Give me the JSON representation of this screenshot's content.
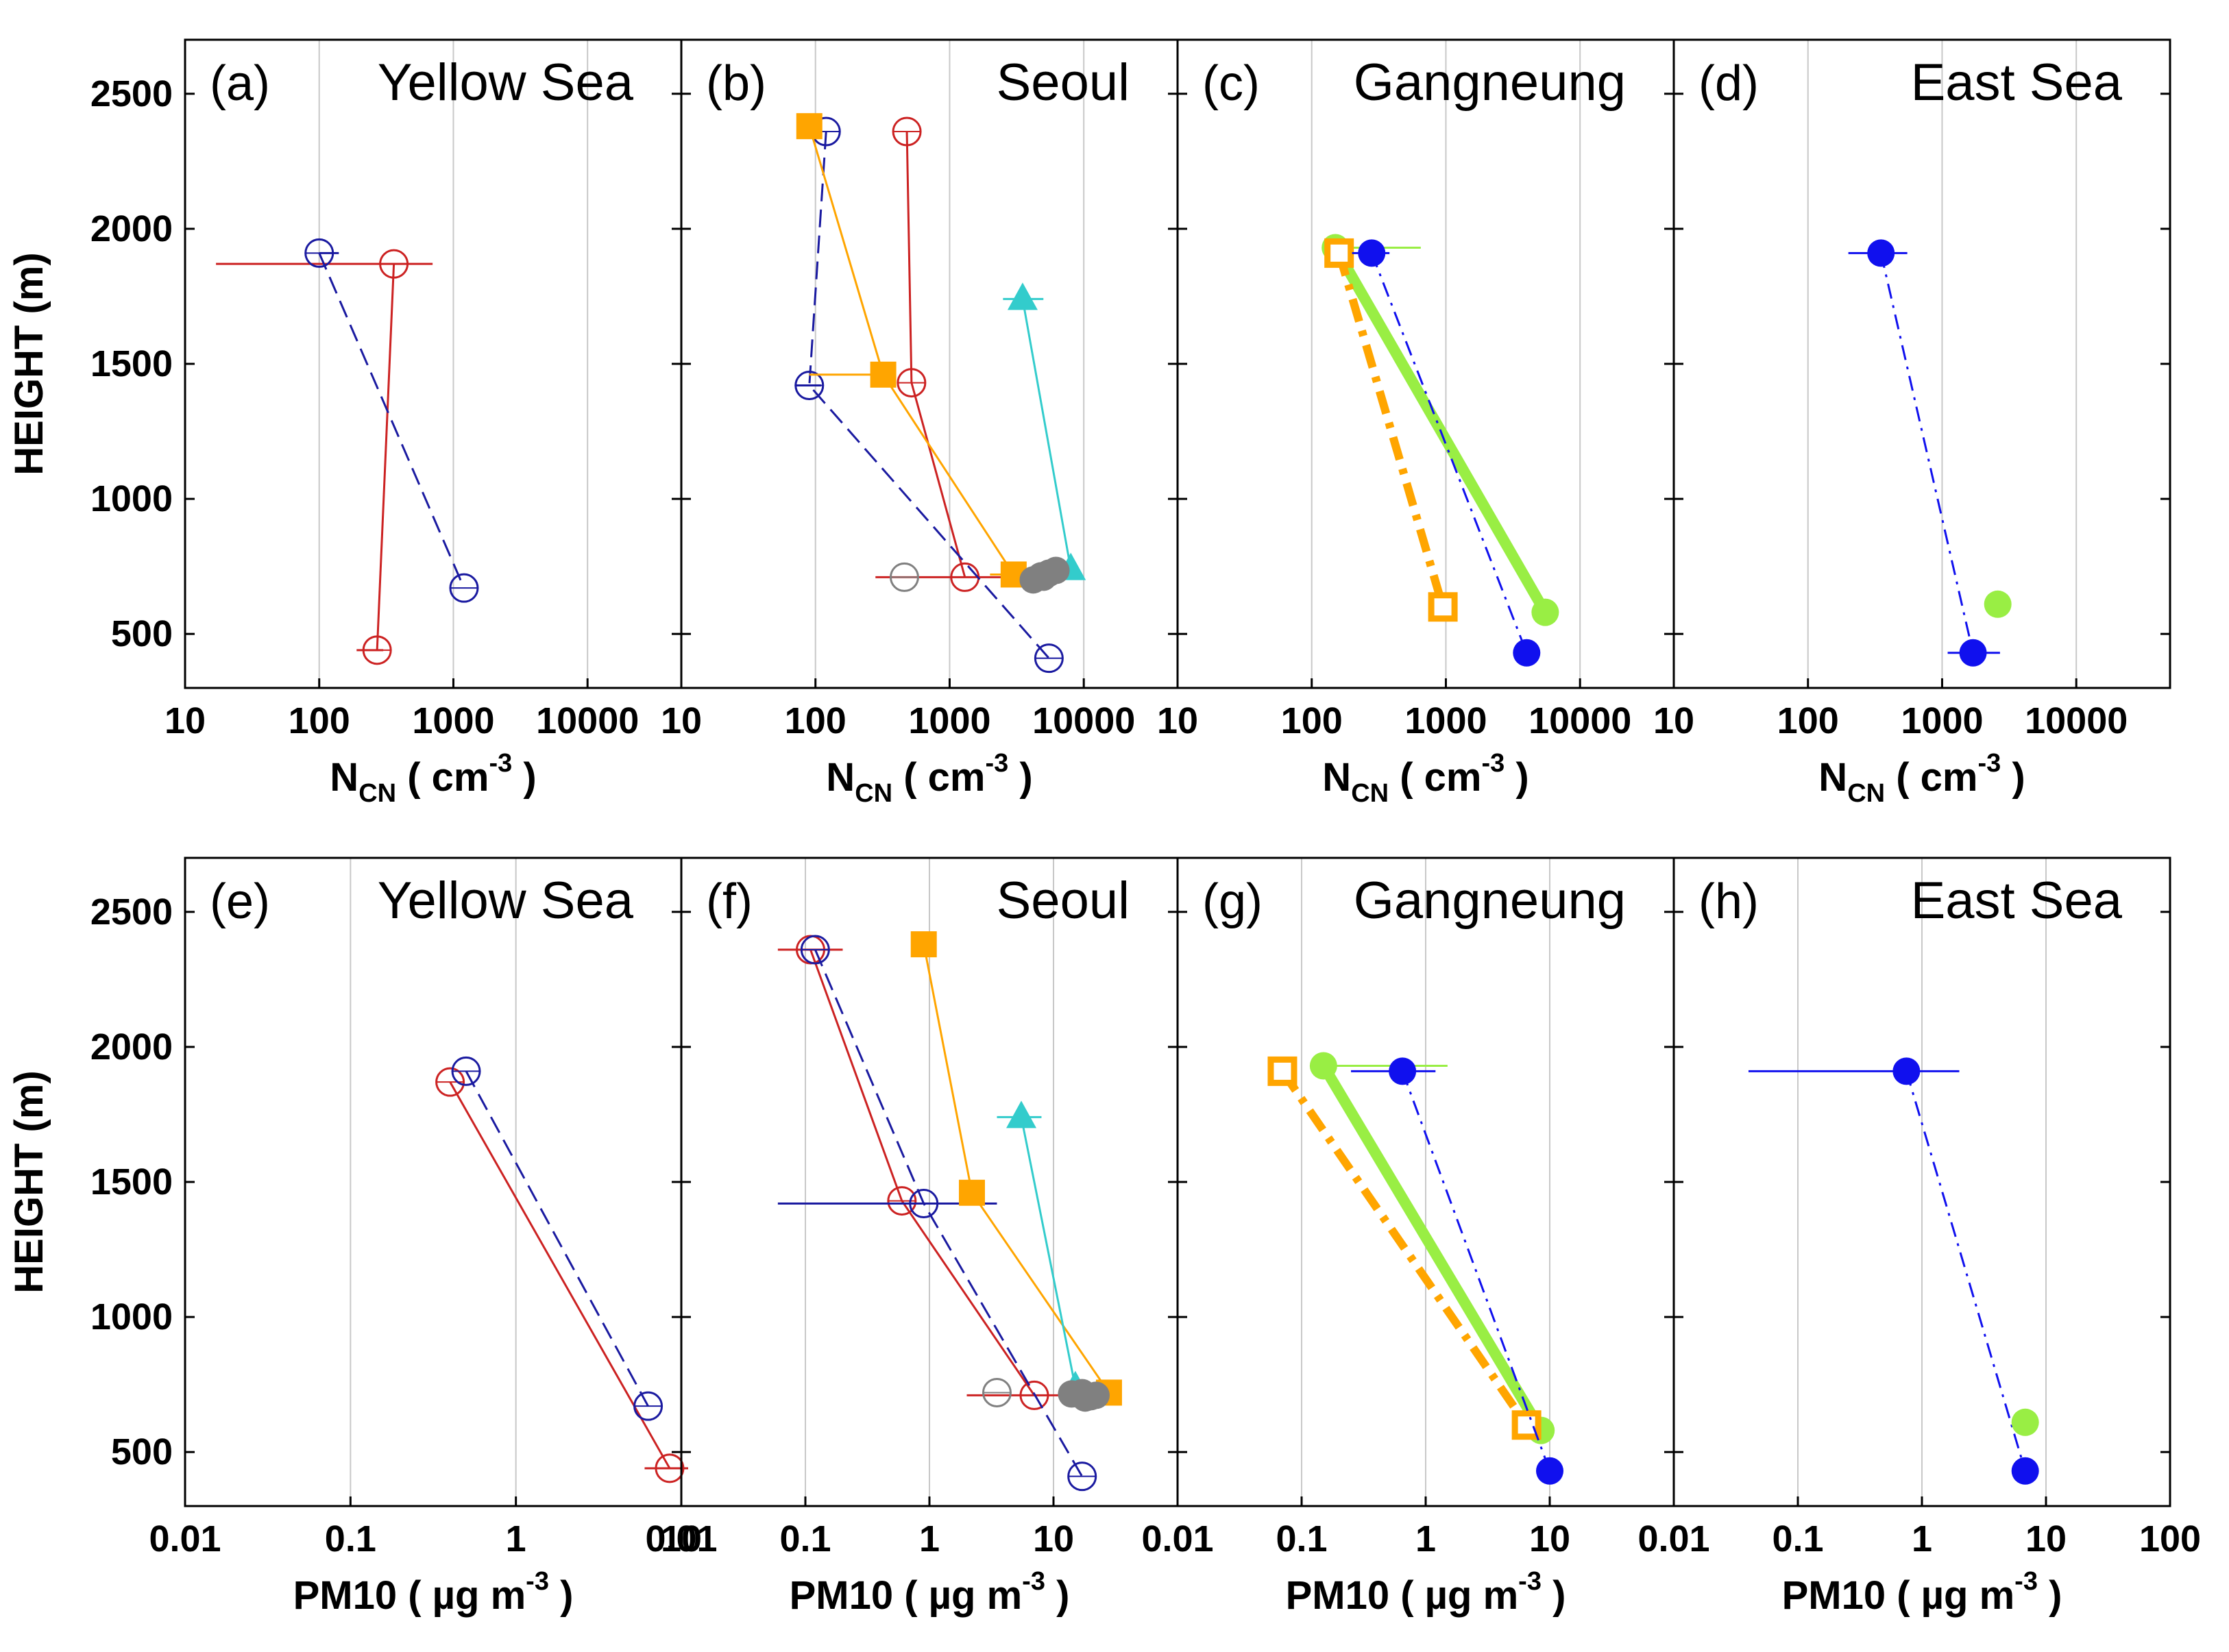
{
  "colors": {
    "red": "#cc2222",
    "navy": "#1a1aa0",
    "orange": "#ffa500",
    "cyan": "#33cccc",
    "green": "#99ee44",
    "blue": "#1010ee",
    "gray": "#808080",
    "grid": "#c8c8c8"
  },
  "chart_data": [
    {
      "type": "line",
      "panel": "(a)",
      "title": "Yellow Sea",
      "ylabel": "HEIGHT (m)",
      "xlabel": {
        "main": "N",
        "sub": "CN",
        "unit_pre": "( cm",
        "unit_sup": "-3",
        "unit_post": " )"
      },
      "xscale": "log",
      "xlim": [
        10,
        50000
      ],
      "ylim": [
        300,
        2700
      ],
      "xticks": [
        "10",
        "100",
        "1000",
        "10000"
      ],
      "yticks": [
        "500",
        "1000",
        "1500",
        "2000",
        "2500"
      ],
      "grid": "vertical",
      "series": [
        {
          "color": "red",
          "marker": "circle-open",
          "line": "solid",
          "points": [
            [
              360,
              1870
            ],
            [
              270,
              440
            ]
          ],
          "errors": [
            [
              17,
              700
            ],
            [
              190,
              300
            ]
          ]
        },
        {
          "color": "navy",
          "marker": "circle-open",
          "line": "dashed",
          "points": [
            [
              100,
              1910
            ],
            [
              1200,
              670
            ]
          ],
          "errors": [
            [
              100,
              140
            ],
            null
          ]
        }
      ]
    },
    {
      "type": "line",
      "panel": "(b)",
      "title": "Seoul",
      "xlabel": {
        "main": "N",
        "sub": "CN",
        "unit_pre": "( cm",
        "unit_sup": "-3",
        "unit_post": " )"
      },
      "xscale": "log",
      "xlim": [
        10,
        50000
      ],
      "ylim": [
        300,
        2700
      ],
      "xticks": [
        "10",
        "100",
        "1000",
        "10000"
      ],
      "grid": "vertical",
      "series": [
        {
          "color": "red",
          "marker": "circle-open",
          "line": "solid",
          "points": [
            [
              480,
              2360
            ],
            [
              520,
              1430
            ],
            [
              1300,
              710
            ]
          ],
          "errors": [
            null,
            null,
            [
              280,
              3000
            ]
          ]
        },
        {
          "color": "navy",
          "marker": "circle-open",
          "line": "dashed",
          "points": [
            [
              120,
              2360
            ],
            [
              90,
              1420
            ],
            [
              5500,
              410
            ]
          ],
          "errors": [
            null,
            [
              70,
              110
            ],
            null
          ]
        },
        {
          "color": "orange",
          "marker": "square-filled",
          "line": "solid",
          "points": [
            [
              90,
              2380
            ],
            [
              320,
              1460
            ],
            [
              3000,
              720
            ]
          ],
          "errors": [
            null,
            [
              90,
              320
            ],
            [
              2000,
              3500
            ]
          ]
        },
        {
          "color": "cyan",
          "marker": "triangle-filled",
          "line": "solid",
          "points": [
            [
              3500,
              1740
            ],
            [
              8000,
              740
            ]
          ],
          "errors": [
            [
              2500,
              5000
            ],
            null
          ]
        },
        {
          "color": "gray",
          "marker": "circle-open",
          "line": "none",
          "points": [
            [
              460,
              710
            ]
          ],
          "errors": [
            null
          ]
        },
        {
          "color": "gray",
          "marker": "circle-filled",
          "line": "none",
          "points": [
            [
              4200,
              700
            ],
            [
              4800,
              715
            ],
            [
              5500,
              725
            ],
            [
              6200,
              735
            ],
            [
              5000,
              710
            ]
          ],
          "errors": [
            null,
            null,
            null,
            null,
            null
          ]
        }
      ]
    },
    {
      "type": "line",
      "panel": "(c)",
      "title": "Gangneung",
      "xlabel": {
        "main": "N",
        "sub": "CN",
        "unit_pre": "( cm",
        "unit_sup": "-3",
        "unit_post": " )"
      },
      "xscale": "log",
      "xlim": [
        10,
        50000
      ],
      "ylim": [
        300,
        2700
      ],
      "xticks": [
        "10",
        "100",
        "1000",
        "10000"
      ],
      "grid": "vertical",
      "series": [
        {
          "color": "green",
          "marker": "circle-filled",
          "line": "thick",
          "points": [
            [
              150,
              1930
            ],
            [
              5500,
              580
            ]
          ],
          "errors": [
            [
              140,
              650
            ],
            null
          ]
        },
        {
          "color": "orange",
          "marker": "square-open",
          "line": "dashdot-thick",
          "points": [
            [
              160,
              1910
            ],
            [
              950,
              600
            ]
          ],
          "errors": [
            null,
            null
          ]
        },
        {
          "color": "blue",
          "marker": "circle-filled",
          "line": "dashdot",
          "points": [
            [
              280,
              1910
            ],
            [
              4000,
              430
            ]
          ],
          "errors": [
            [
              200,
              380
            ],
            null
          ]
        }
      ]
    },
    {
      "type": "line",
      "panel": "(d)",
      "title": "East Sea",
      "xlabel": {
        "main": "N",
        "sub": "CN",
        "unit_pre": "( cm",
        "unit_sup": "-3",
        "unit_post": " )"
      },
      "xscale": "log",
      "xlim": [
        10,
        50000
      ],
      "ylim": [
        300,
        2700
      ],
      "xticks": [
        "10",
        "100",
        "1000",
        "10000"
      ],
      "grid": "vertical",
      "series": [
        {
          "color": "blue",
          "marker": "circle-filled",
          "line": "dashdot",
          "points": [
            [
              350,
              1910
            ],
            [
              1700,
              430
            ]
          ],
          "errors": [
            [
              200,
              550
            ],
            [
              1100,
              2700
            ]
          ]
        },
        {
          "color": "green",
          "marker": "circle-filled",
          "line": "none",
          "points": [
            [
              2600,
              610
            ]
          ],
          "errors": [
            null
          ]
        }
      ]
    },
    {
      "type": "line",
      "panel": "(e)",
      "title": "Yellow Sea",
      "ylabel": "HEIGHT (m)",
      "xlabel": {
        "main": "PM10",
        "unit_pre": "( µg m",
        "unit_sup": "-3",
        "unit_post": " )"
      },
      "xscale": "log",
      "xlim": [
        0.01,
        10
      ],
      "ylim": [
        300,
        2700
      ],
      "xticks": [
        "0.01",
        "0.1",
        "1",
        "10"
      ],
      "yticks": [
        "500",
        "1000",
        "1500",
        "2000",
        "2500"
      ],
      "grid": "vertical",
      "series": [
        {
          "color": "red",
          "marker": "circle-open",
          "line": "solid",
          "points": [
            [
              0.4,
              1870
            ],
            [
              8.5,
              440
            ]
          ],
          "errors": [
            null,
            [
              6,
              11
            ]
          ]
        },
        {
          "color": "navy",
          "marker": "circle-open",
          "line": "dashed",
          "points": [
            [
              0.5,
              1910
            ],
            [
              6.3,
              670
            ]
          ],
          "errors": [
            null,
            null
          ]
        }
      ]
    },
    {
      "type": "line",
      "panel": "(f)",
      "title": "Seoul",
      "xlabel": {
        "main": "PM10",
        "unit_pre": "( µg m",
        "unit_sup": "-3",
        "unit_post": " )"
      },
      "xscale": "log",
      "xlim": [
        0.01,
        100
      ],
      "ylim": [
        300,
        2700
      ],
      "xticks": [
        "0.01",
        "0.1",
        "1",
        "10"
      ],
      "grid": "vertical",
      "series": [
        {
          "color": "red",
          "marker": "circle-open",
          "line": "solid",
          "points": [
            [
              0.11,
              2360
            ],
            [
              0.6,
              1430
            ],
            [
              7,
              710
            ]
          ],
          "errors": [
            [
              0.06,
              0.2
            ],
            null,
            [
              2,
              25
            ]
          ]
        },
        {
          "color": "navy",
          "marker": "circle-open",
          "line": "dashed",
          "points": [
            [
              0.12,
              2360
            ],
            [
              0.9,
              1420
            ],
            [
              17,
              410
            ]
          ],
          "errors": [
            null,
            [
              0.06,
              3.5
            ],
            null
          ]
        },
        {
          "color": "orange",
          "marker": "square-filled",
          "line": "solid",
          "points": [
            [
              0.9,
              2380
            ],
            [
              2.2,
              1460
            ],
            [
              28,
              720
            ]
          ],
          "errors": [
            null,
            null,
            null
          ]
        },
        {
          "color": "cyan",
          "marker": "triangle-filled",
          "line": "solid",
          "points": [
            [
              5.5,
              1740
            ],
            [
              15,
              740
            ]
          ],
          "errors": [
            [
              3.5,
              8
            ],
            null
          ]
        },
        {
          "color": "gray",
          "marker": "circle-open",
          "line": "none",
          "points": [
            [
              3.5,
              720
            ]
          ],
          "errors": [
            null
          ]
        },
        {
          "color": "gray",
          "marker": "circle-filled",
          "line": "none",
          "points": [
            [
              14,
              715
            ],
            [
              17,
              720
            ],
            [
              20,
              705
            ],
            [
              22,
              710
            ],
            [
              18,
              700
            ]
          ],
          "errors": [
            null,
            null,
            null,
            null,
            null
          ]
        }
      ]
    },
    {
      "type": "line",
      "panel": "(g)",
      "title": "Gangneung",
      "xlabel": {
        "main": "PM10",
        "unit_pre": "( µg m",
        "unit_sup": "-3",
        "unit_post": " )"
      },
      "xscale": "log",
      "xlim": [
        0.01,
        100
      ],
      "ylim": [
        300,
        2700
      ],
      "xticks": [
        "0.01",
        "0.1",
        "1",
        "10"
      ],
      "grid": "vertical",
      "series": [
        {
          "color": "green",
          "marker": "circle-filled",
          "line": "thick",
          "points": [
            [
              0.15,
              1930
            ],
            [
              8.5,
              580
            ]
          ],
          "errors": [
            [
              0.15,
              1.5
            ],
            null
          ]
        },
        {
          "color": "orange",
          "marker": "square-open",
          "line": "dashdot-thick",
          "points": [
            [
              0.07,
              1910
            ],
            [
              6.5,
              600
            ]
          ],
          "errors": [
            null,
            null
          ]
        },
        {
          "color": "blue",
          "marker": "circle-filled",
          "line": "dashdot",
          "points": [
            [
              0.65,
              1910
            ],
            [
              10,
              430
            ]
          ],
          "errors": [
            [
              0.25,
              1.2
            ],
            null
          ]
        }
      ]
    },
    {
      "type": "line",
      "panel": "(h)",
      "title": "East Sea",
      "xlabel": {
        "main": "PM10",
        "unit_pre": "( µg m",
        "unit_sup": "-3",
        "unit_post": " )"
      },
      "xscale": "log",
      "xlim": [
        0.01,
        100
      ],
      "ylim": [
        300,
        2700
      ],
      "xticks": [
        "0.01",
        "0.1",
        "1",
        "10",
        "100"
      ],
      "grid": "vertical",
      "series": [
        {
          "color": "blue",
          "marker": "circle-filled",
          "line": "dashdot",
          "points": [
            [
              0.75,
              1910
            ],
            [
              6.8,
              430
            ]
          ],
          "errors": [
            [
              0.04,
              2
            ],
            null
          ]
        },
        {
          "color": "green",
          "marker": "circle-filled",
          "line": "none",
          "points": [
            [
              6.8,
              610
            ]
          ],
          "errors": [
            null
          ]
        }
      ]
    }
  ]
}
